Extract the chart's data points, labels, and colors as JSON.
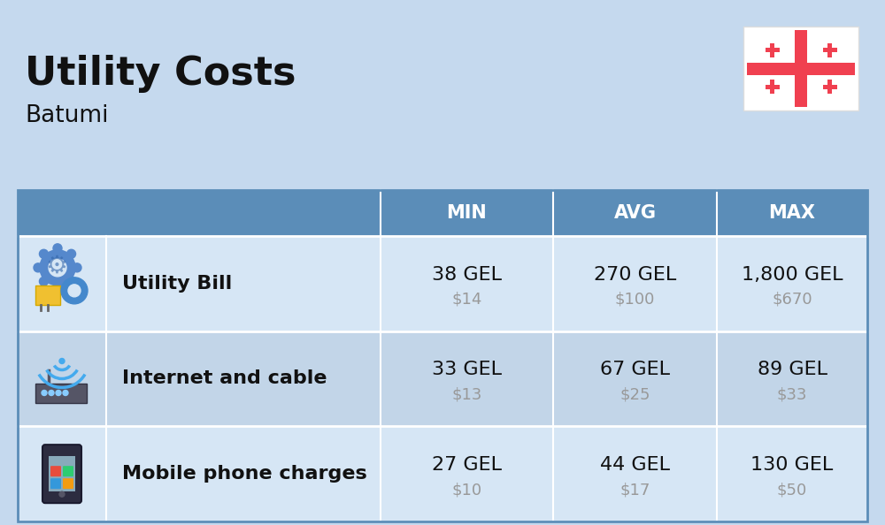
{
  "title": "Utility Costs",
  "subtitle": "Batumi",
  "background_color": "#c5d9ee",
  "header_bg_color": "#5b8db8",
  "header_text_color": "#ffffff",
  "row_bg_light": "#d6e6f5",
  "row_bg_dark": "#c2d5e8",
  "table_border_color": "#5b8db8",
  "columns": [
    "",
    "",
    "MIN",
    "AVG",
    "MAX"
  ],
  "rows": [
    {
      "label": "Utility Bill",
      "min_gel": "38 GEL",
      "min_usd": "$14",
      "avg_gel": "270 GEL",
      "avg_usd": "$100",
      "max_gel": "1,800 GEL",
      "max_usd": "$670",
      "icon": "utility"
    },
    {
      "label": "Internet and cable",
      "min_gel": "33 GEL",
      "min_usd": "$13",
      "avg_gel": "67 GEL",
      "avg_usd": "$25",
      "max_gel": "89 GEL",
      "max_usd": "$33",
      "icon": "internet"
    },
    {
      "label": "Mobile phone charges",
      "min_gel": "27 GEL",
      "min_usd": "$10",
      "avg_gel": "44 GEL",
      "avg_usd": "$17",
      "max_gel": "130 GEL",
      "max_usd": "$50",
      "icon": "mobile"
    }
  ],
  "title_fontsize": 32,
  "subtitle_fontsize": 19,
  "header_fontsize": 15,
  "cell_gel_fontsize": 16,
  "label_fontsize": 16,
  "usd_fontsize": 13,
  "usd_color": "#999999",
  "text_color": "#111111",
  "flag_red": "#f04050"
}
